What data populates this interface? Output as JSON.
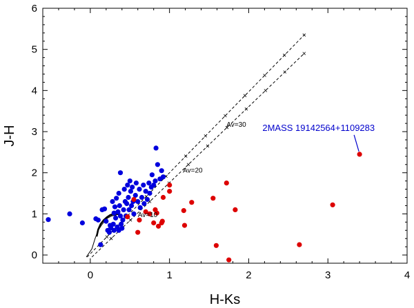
{
  "chart_data": {
    "type": "scatter",
    "xlabel": "H-Ks",
    "ylabel": "J-H",
    "xlim": [
      -0.6,
      4.0
    ],
    "ylim": [
      -0.2,
      6.0
    ],
    "x_ticks": [
      "0",
      "1",
      "2",
      "3",
      "4"
    ],
    "x_tick_values": [
      0,
      1,
      2,
      3,
      4
    ],
    "y_ticks": [
      "0",
      "1",
      "2",
      "3",
      "4",
      "5",
      "6"
    ],
    "y_tick_values": [
      0,
      1,
      2,
      3,
      4,
      5,
      6
    ],
    "grid": false,
    "colors": {
      "blue": "#0000dd",
      "red": "#dd0000",
      "annotation": "#0000cc"
    },
    "series": [
      {
        "color": "blue",
        "points": [
          [
            -0.53,
            0.86
          ],
          [
            -0.26,
            1.0
          ],
          [
            -0.1,
            0.78
          ],
          [
            0.07,
            0.88
          ],
          [
            0.1,
            0.85
          ],
          [
            0.13,
            0.25
          ],
          [
            0.15,
            1.1
          ],
          [
            0.18,
            1.12
          ],
          [
            0.2,
            0.82
          ],
          [
            0.22,
            0.6
          ],
          [
            0.24,
            0.55
          ],
          [
            0.25,
            0.72
          ],
          [
            0.26,
            0.66
          ],
          [
            0.28,
            1.3
          ],
          [
            0.29,
            0.75
          ],
          [
            0.3,
            0.6
          ],
          [
            0.31,
            1.17
          ],
          [
            0.32,
            0.9
          ],
          [
            0.33,
            1.38
          ],
          [
            0.34,
            0.68
          ],
          [
            0.35,
            1.05
          ],
          [
            0.36,
            1.5
          ],
          [
            0.37,
            1.2
          ],
          [
            0.38,
            0.95
          ],
          [
            0.38,
            2.0
          ],
          [
            0.39,
            0.75
          ],
          [
            0.4,
            0.65
          ],
          [
            0.41,
            0.85
          ],
          [
            0.42,
            1.1
          ],
          [
            0.43,
            1.6
          ],
          [
            0.44,
            1.3
          ],
          [
            0.45,
            0.95
          ],
          [
            0.46,
            1.25
          ],
          [
            0.47,
            1.7
          ],
          [
            0.48,
            1.4
          ],
          [
            0.49,
            1.1
          ],
          [
            0.5,
            1.8
          ],
          [
            0.51,
            1.55
          ],
          [
            0.52,
            1.2
          ],
          [
            0.53,
            1.65
          ],
          [
            0.54,
            1.3
          ],
          [
            0.55,
            1.0
          ],
          [
            0.57,
            1.45
          ],
          [
            0.58,
            1.75
          ],
          [
            0.6,
            1.3
          ],
          [
            0.62,
            1.6
          ],
          [
            0.63,
            1.15
          ],
          [
            0.65,
            1.4
          ],
          [
            0.67,
            1.7
          ],
          [
            0.68,
            1.25
          ],
          [
            0.7,
            1.55
          ],
          [
            0.72,
            1.35
          ],
          [
            0.74,
            1.75
          ],
          [
            0.75,
            1.5
          ],
          [
            0.77,
            1.65
          ],
          [
            0.78,
            1.95
          ],
          [
            0.8,
            1.7
          ],
          [
            0.82,
            1.8
          ],
          [
            0.83,
            2.6
          ],
          [
            0.85,
            2.2
          ],
          [
            0.88,
            1.85
          ],
          [
            0.9,
            2.05
          ],
          [
            0.92,
            1.9
          ],
          [
            0.36,
            0.6
          ],
          [
            0.3,
            1.02
          ]
        ]
      },
      {
        "color": "red",
        "points": [
          [
            0.47,
            0.93
          ],
          [
            0.55,
            1.35
          ],
          [
            0.6,
            0.55
          ],
          [
            0.62,
            0.85
          ],
          [
            0.7,
            1.05
          ],
          [
            0.75,
            1.0
          ],
          [
            0.8,
            0.78
          ],
          [
            0.82,
            1.1
          ],
          [
            0.84,
            1.02
          ],
          [
            0.86,
            0.7
          ],
          [
            0.9,
            0.78
          ],
          [
            0.91,
            0.82
          ],
          [
            0.92,
            1.4
          ],
          [
            1.0,
            1.7
          ],
          [
            1.0,
            1.55
          ],
          [
            1.18,
            1.08
          ],
          [
            1.19,
            0.72
          ],
          [
            1.28,
            1.28
          ],
          [
            1.55,
            1.38
          ],
          [
            1.59,
            0.23
          ],
          [
            1.72,
            1.75
          ],
          [
            1.75,
            -0.12
          ],
          [
            1.83,
            1.1
          ],
          [
            2.64,
            0.25
          ],
          [
            3.06,
            1.22
          ],
          [
            3.4,
            2.45
          ]
        ]
      }
    ],
    "reddening_vectors": [
      {
        "from": [
          -0.04,
          -0.05
        ],
        "to": [
          2.7,
          5.35
        ]
      },
      {
        "from": [
          0.02,
          -0.05
        ],
        "to": [
          2.7,
          4.9
        ]
      }
    ],
    "annotations": [
      "Av=10",
      "Av=20",
      "Av=30"
    ],
    "highlight": {
      "label": "2MASS 19142564+1109283",
      "point": [
        3.4,
        2.45
      ]
    }
  }
}
